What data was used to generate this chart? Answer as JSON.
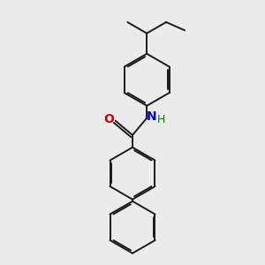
{
  "background_color": "#ebebeb",
  "bond_color": "#1a1a1a",
  "oxygen_color": "#cc0000",
  "nitrogen_color": "#0000cc",
  "hydrogen_color": "#008800",
  "line_width": 1.4,
  "dbo": 0.045,
  "figsize": [
    3.0,
    3.0
  ],
  "dpi": 100,
  "xlim": [
    -2.0,
    2.0
  ],
  "ylim": [
    -3.5,
    3.5
  ],
  "ring_r": 0.7
}
